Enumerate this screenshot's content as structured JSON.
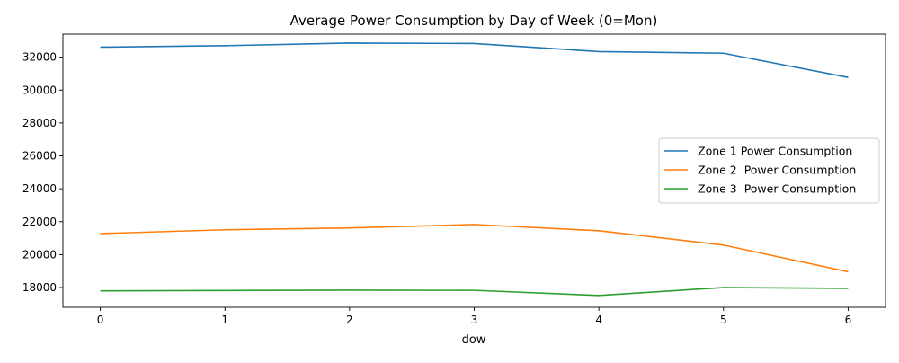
{
  "chart_data": {
    "type": "line",
    "title": "Average Power Consumption by Day of Week (0=Mon)",
    "xlabel": "dow",
    "ylabel": "",
    "x": [
      0,
      1,
      2,
      3,
      4,
      5,
      6
    ],
    "xlim": [
      -0.3,
      6.3
    ],
    "ylim": [
      16800,
      33400
    ],
    "x_ticks": [
      0,
      1,
      2,
      3,
      4,
      5,
      6
    ],
    "y_ticks": [
      18000,
      20000,
      22000,
      24000,
      26000,
      28000,
      30000,
      32000
    ],
    "grid": false,
    "legend_position": "center-right",
    "series": [
      {
        "name": "Zone 1 Power Consumption",
        "color": "#1f77b4",
        "values": [
          32610,
          32700,
          32860,
          32830,
          32340,
          32240,
          30770
        ]
      },
      {
        "name": "Zone 2  Power Consumption",
        "color": "#ff7f0e",
        "values": [
          21280,
          21510,
          21620,
          21830,
          21450,
          20580,
          18960
        ]
      },
      {
        "name": "Zone 3  Power Consumption",
        "color": "#2ca02c",
        "values": [
          17800,
          17820,
          17840,
          17830,
          17520,
          18000,
          17950
        ]
      }
    ]
  }
}
